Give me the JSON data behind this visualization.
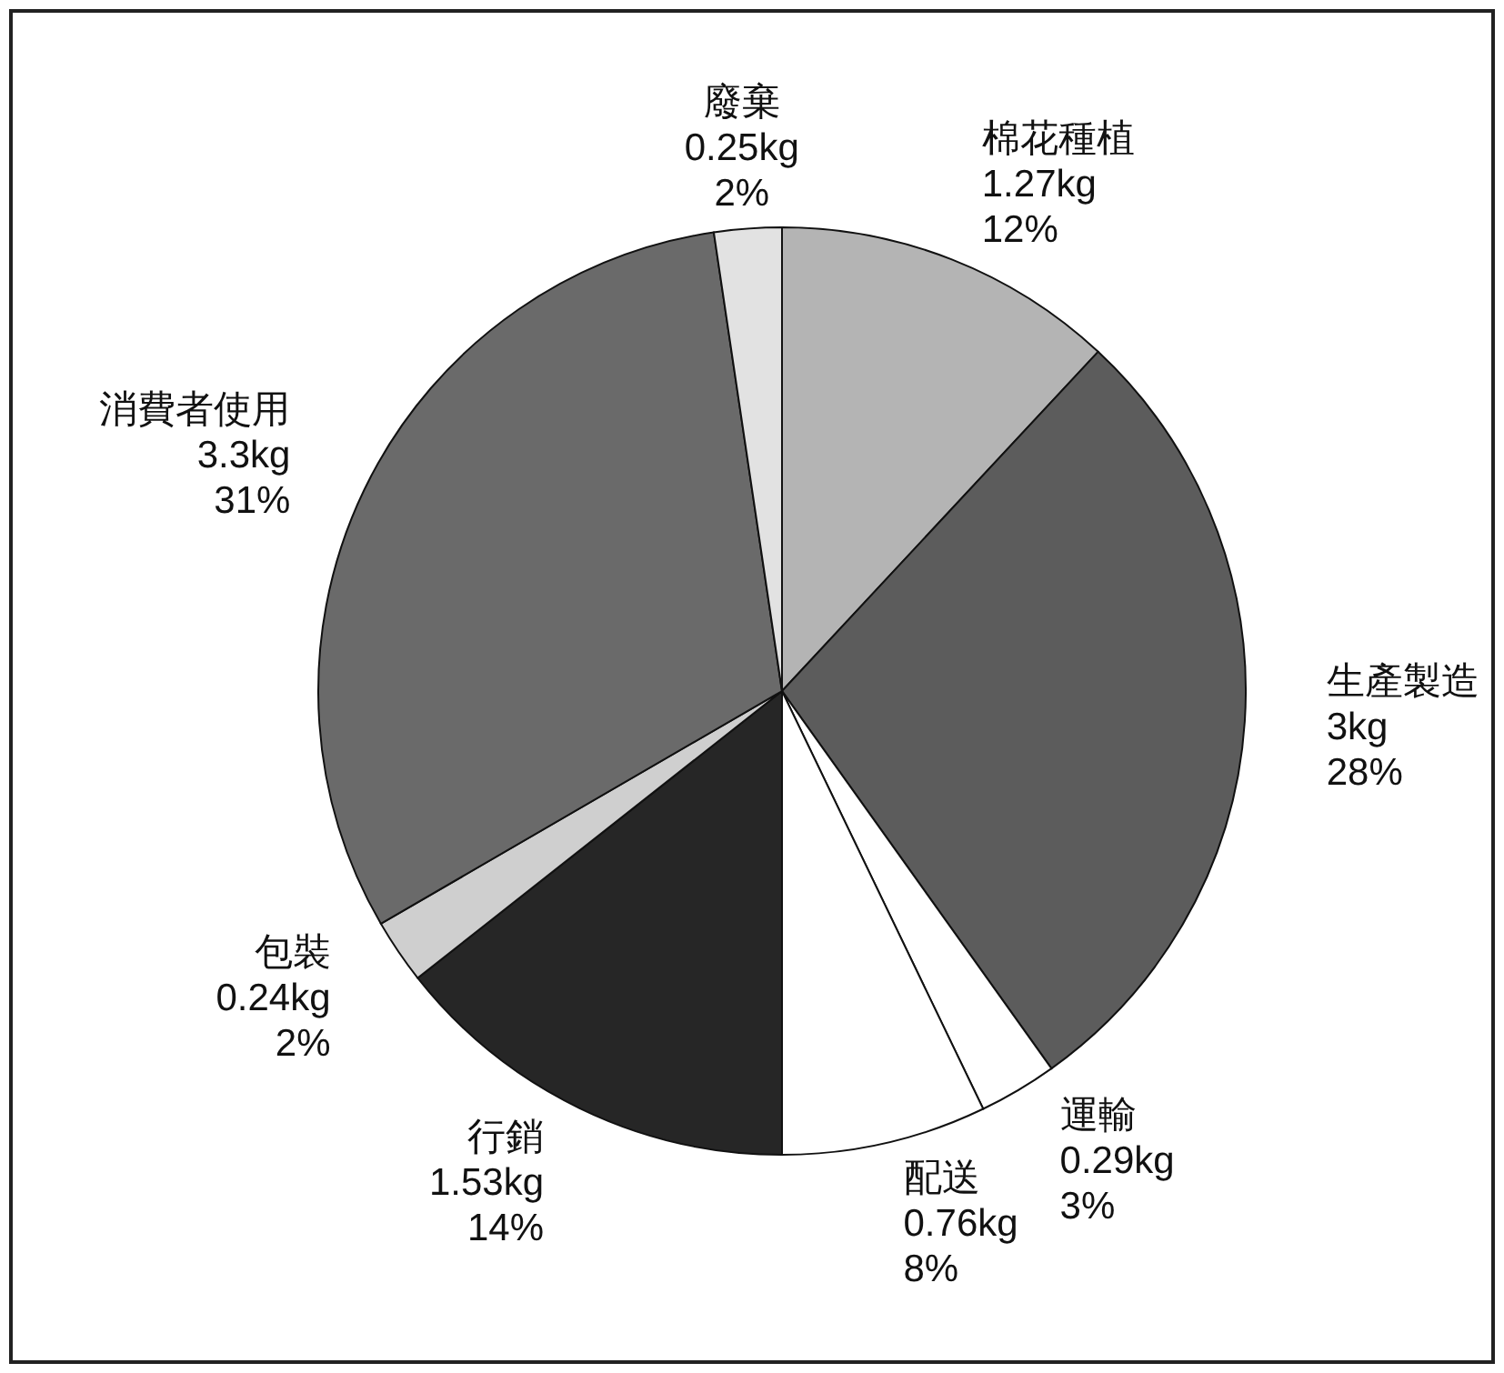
{
  "chart_data": {
    "type": "pie",
    "categories": [
      "棉花種植",
      "生產製造",
      "運輸",
      "配送",
      "行銷",
      "包裝",
      "消費者使用",
      "廢棄"
    ],
    "values": [
      1.27,
      3,
      0.29,
      0.76,
      1.53,
      0.24,
      3.3,
      0.25
    ],
    "value_labels": [
      "1.27kg\n12%",
      "3kg\n28%",
      "0.29kg\n3%",
      "0.76kg\n8%",
      "1.53kg\n14%",
      "0.24kg\n2%",
      "3.3kg\n31%",
      "0.25kg\n2%"
    ],
    "colors": [
      "#b4b4b4",
      "#5c5c5c",
      "#ffffff",
      "#ffffff",
      "#262626",
      "#cfcfcf",
      "#6a6a6a",
      "#e2e2e2"
    ]
  }
}
